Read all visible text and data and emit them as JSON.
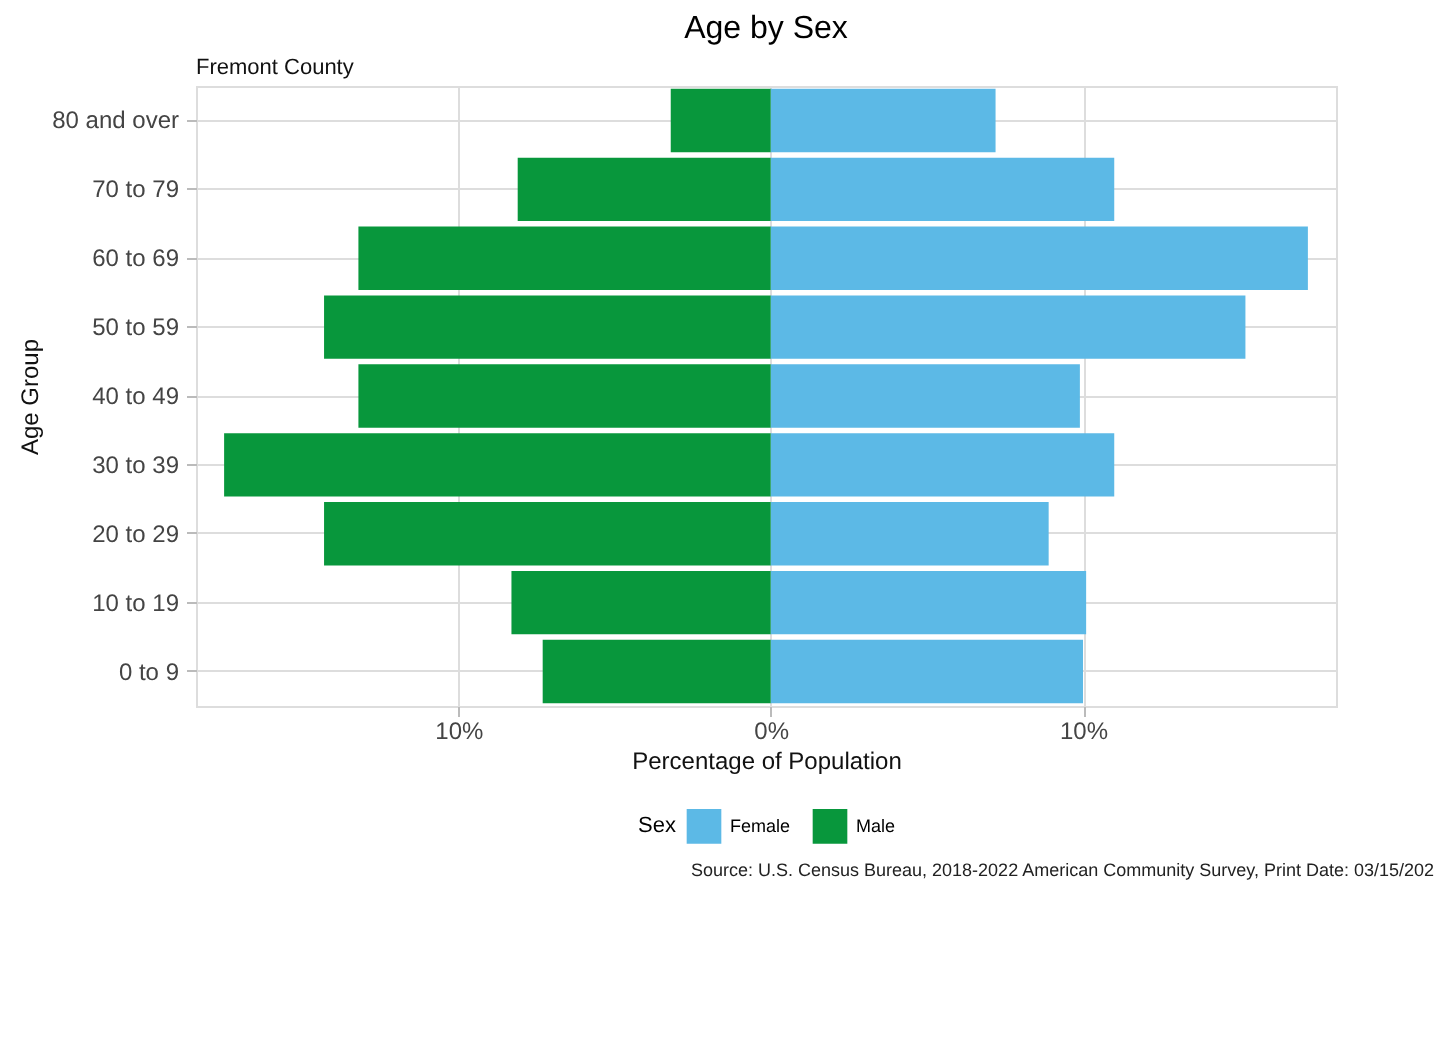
{
  "chart_data": {
    "type": "bar",
    "orientation": "horizontal",
    "title": "Age by Sex",
    "subtitle": "Fremont County",
    "xlabel": "Percentage of Population",
    "ylabel": "Age Group",
    "legend_title": "Sex",
    "categories": [
      "80 and over",
      "70 to 79",
      "60 to 69",
      "50 to 59",
      "40 to 49",
      "30 to 39",
      "20 to 29",
      "10 to 19",
      "0 to 9"
    ],
    "series": [
      {
        "name": "Female",
        "color": "#5cb9e6",
        "values": [
          7.2,
          11.0,
          17.2,
          15.2,
          9.9,
          11.0,
          8.9,
          10.1,
          10.0
        ]
      },
      {
        "name": "Male",
        "color": "#08973c",
        "values": [
          -3.2,
          -8.1,
          -13.2,
          -14.3,
          -13.2,
          -17.5,
          -14.3,
          -8.3,
          -7.3
        ]
      }
    ],
    "xlim": [
      -18.4,
      18.1
    ],
    "xticks": [
      {
        "value": -10,
        "label": "10%"
      },
      {
        "value": 0,
        "label": "0%"
      },
      {
        "value": 10,
        "label": "10%"
      }
    ],
    "stacked": true,
    "grid": true,
    "legend": "bottom",
    "annotations": [
      "Source: U.S. Census Bureau, 2018-2022 American Community Survey, Print Date: 03/15/202"
    ]
  }
}
